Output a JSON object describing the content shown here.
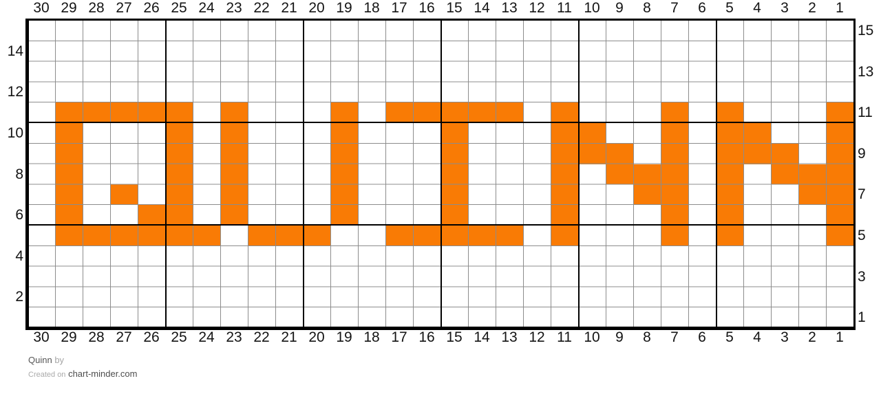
{
  "chart_data": {
    "type": "heatmap",
    "title": "Quinn",
    "pattern_text": "QUINN",
    "grid": {
      "columns": 30,
      "rows": 15,
      "major_line_every": 5,
      "column_numbering": "right-to-left",
      "row_numbering": "bottom-to-top"
    },
    "colors": {
      "cell_fill": "#F97B05",
      "grid_minor": "#8C8C8C",
      "grid_major": "#000000",
      "tick_text": "#141414",
      "background": "#FFFFFF"
    },
    "top_labels": [
      "30",
      "29",
      "28",
      "27",
      "26",
      "25",
      "24",
      "23",
      "22",
      "21",
      "20",
      "19",
      "18",
      "17",
      "16",
      "15",
      "14",
      "13",
      "12",
      "11",
      "10",
      "9",
      "8",
      "7",
      "6",
      "5",
      "4",
      "3",
      "2",
      "1"
    ],
    "bottom_labels": [
      "30",
      "29",
      "28",
      "27",
      "26",
      "25",
      "24",
      "23",
      "22",
      "21",
      "20",
      "19",
      "18",
      "17",
      "16",
      "15",
      "14",
      "13",
      "12",
      "11",
      "10",
      "9",
      "8",
      "7",
      "6",
      "5",
      "4",
      "3",
      "2",
      "1"
    ],
    "left_labels": [
      {
        "row": 14,
        "text": "14"
      },
      {
        "row": 12,
        "text": "12"
      },
      {
        "row": 10,
        "text": "10"
      },
      {
        "row": 8,
        "text": "8"
      },
      {
        "row": 6,
        "text": "6"
      },
      {
        "row": 4,
        "text": "4"
      },
      {
        "row": 2,
        "text": "2"
      }
    ],
    "right_labels": [
      {
        "row": 15,
        "text": "15"
      },
      {
        "row": 13,
        "text": "13"
      },
      {
        "row": 11,
        "text": "11"
      },
      {
        "row": 9,
        "text": "9"
      },
      {
        "row": 7,
        "text": "7"
      },
      {
        "row": 5,
        "text": "5"
      },
      {
        "row": 3,
        "text": "3"
      },
      {
        "row": 1,
        "text": "1"
      }
    ],
    "filled_cells_by_row": {
      "11": [
        29,
        28,
        27,
        26,
        25,
        23,
        19,
        17,
        16,
        15,
        14,
        13,
        11,
        7,
        5,
        1
      ],
      "10": [
        29,
        25,
        23,
        19,
        15,
        11,
        10,
        7,
        5,
        4,
        1
      ],
      "9": [
        29,
        25,
        23,
        19,
        15,
        11,
        10,
        9,
        7,
        5,
        4,
        3,
        1
      ],
      "8": [
        29,
        25,
        23,
        19,
        15,
        11,
        9,
        8,
        7,
        5,
        3,
        2,
        1
      ],
      "7": [
        29,
        27,
        25,
        23,
        19,
        15,
        11,
        8,
        7,
        5,
        2,
        1
      ],
      "6": [
        29,
        26,
        25,
        23,
        19,
        15,
        11,
        7,
        5,
        1
      ],
      "5": [
        29,
        28,
        27,
        26,
        25,
        24,
        22,
        21,
        20,
        17,
        16,
        15,
        14,
        13,
        11,
        7,
        5,
        1
      ]
    }
  },
  "footer": {
    "title": "Quinn",
    "by_label": "by",
    "created_prefix": "Created on",
    "site": "chart-minder.com"
  }
}
